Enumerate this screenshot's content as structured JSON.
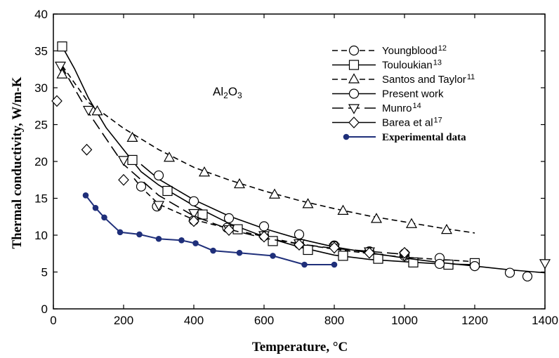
{
  "chart_data": {
    "type": "line",
    "title": "",
    "xlabel": "Temperature, °C",
    "ylabel": "Thermal conductivity, W/m-K",
    "xlim": [
      0,
      1400
    ],
    "ylim": [
      0,
      40
    ],
    "xticks": [
      "0",
      "200",
      "400",
      "600",
      "800",
      "1000",
      "1200",
      "1400"
    ],
    "yticks": [
      "0",
      "5",
      "10",
      "15",
      "20",
      "25",
      "30",
      "35",
      "40"
    ],
    "annotation": {
      "main": "Al",
      "sub": "2",
      "tail": "O",
      "sub2": "3"
    },
    "legend_position": "top-right",
    "series": [
      {
        "name": "Youngblood",
        "ref": "12",
        "marker": "circle",
        "line": "dashed",
        "color": "#000000",
        "curve": [
          [
            230,
            17.7
          ],
          [
            250,
            16.5
          ],
          [
            300,
            14.2
          ],
          [
            400,
            12.1
          ],
          [
            500,
            10.9
          ],
          [
            600,
            9.8
          ],
          [
            700,
            8.8
          ],
          [
            800,
            8.1
          ],
          [
            900,
            7.5
          ],
          [
            1000,
            7.0
          ],
          [
            1100,
            6.7
          ],
          [
            1200,
            6.4
          ]
        ],
        "points": [
          [
            250,
            16.6
          ],
          [
            295,
            13.9
          ],
          [
            400,
            12.0
          ],
          [
            495,
            11.0
          ],
          [
            600,
            9.9
          ],
          [
            700,
            8.8
          ],
          [
            800,
            8.6
          ],
          [
            1000,
            7.2
          ],
          [
            1100,
            6.9
          ]
        ]
      },
      {
        "name": "Touloukian",
        "ref": "13",
        "marker": "square",
        "line": "solid",
        "color": "#000000",
        "curve": [
          [
            25,
            35.6
          ],
          [
            60,
            32.6
          ],
          [
            100,
            28.6
          ],
          [
            150,
            24.6
          ],
          [
            200,
            21.6
          ],
          [
            250,
            18.6
          ],
          [
            300,
            16.8
          ],
          [
            350,
            15.4
          ],
          [
            400,
            14.0
          ],
          [
            500,
            11.6
          ],
          [
            600,
            9.8
          ],
          [
            700,
            8.4
          ],
          [
            800,
            7.3
          ],
          [
            900,
            6.7
          ],
          [
            1000,
            6.4
          ],
          [
            1100,
            6.1
          ],
          [
            1200,
            6.0
          ]
        ],
        "points": [
          [
            25,
            35.6
          ],
          [
            225,
            20.2
          ],
          [
            325,
            16.0
          ],
          [
            425,
            12.8
          ],
          [
            525,
            10.8
          ],
          [
            625,
            9.2
          ],
          [
            725,
            8.0
          ],
          [
            825,
            7.2
          ],
          [
            925,
            6.8
          ],
          [
            1025,
            6.3
          ],
          [
            1125,
            6.0
          ],
          [
            1200,
            6.2
          ]
        ]
      },
      {
        "name": "Santos and Taylor",
        "ref": "11",
        "marker": "triangle-up",
        "line": "dashed",
        "color": "#000000",
        "curve": [
          [
            25,
            33.0
          ],
          [
            100,
            28.0
          ],
          [
            200,
            24.5
          ],
          [
            300,
            21.6
          ],
          [
            400,
            19.2
          ],
          [
            500,
            17.5
          ],
          [
            600,
            16.0
          ],
          [
            700,
            14.7
          ],
          [
            800,
            13.6
          ],
          [
            900,
            12.6
          ],
          [
            1000,
            11.8
          ],
          [
            1100,
            11.0
          ],
          [
            1200,
            10.3
          ]
        ],
        "points": [
          [
            25,
            31.8
          ],
          [
            125,
            26.8
          ],
          [
            225,
            23.2
          ],
          [
            330,
            20.5
          ],
          [
            430,
            18.5
          ],
          [
            530,
            16.9
          ],
          [
            630,
            15.5
          ],
          [
            725,
            14.2
          ],
          [
            825,
            13.3
          ],
          [
            920,
            12.2
          ],
          [
            1020,
            11.5
          ],
          [
            1120,
            10.7
          ]
        ]
      },
      {
        "name": "Present work",
        "ref": "",
        "marker": "circle",
        "line": "solid",
        "color": "#000000",
        "curve": [
          [
            250,
            19.6
          ],
          [
            300,
            17.6
          ],
          [
            400,
            14.8
          ],
          [
            500,
            12.6
          ],
          [
            600,
            10.9
          ],
          [
            700,
            9.5
          ],
          [
            800,
            8.4
          ],
          [
            900,
            7.6
          ],
          [
            1000,
            6.9
          ],
          [
            1100,
            6.3
          ],
          [
            1200,
            5.8
          ],
          [
            1300,
            5.3
          ],
          [
            1400,
            4.9
          ]
        ],
        "points": [
          [
            300,
            18.1
          ],
          [
            400,
            14.6
          ],
          [
            500,
            12.3
          ],
          [
            600,
            11.2
          ],
          [
            700,
            10.1
          ],
          [
            800,
            8.5
          ],
          [
            900,
            7.8
          ],
          [
            1000,
            7.5
          ],
          [
            1100,
            6.1
          ],
          [
            1200,
            5.8
          ],
          [
            1300,
            4.9
          ],
          [
            1350,
            4.4
          ]
        ]
      },
      {
        "name": "Munro",
        "ref": "14",
        "marker": "triangle-down",
        "line": "long-dashed",
        "color": "#000000",
        "curve": [
          [
            20,
            33.2
          ],
          [
            100,
            26.6
          ],
          [
            200,
            19.6
          ],
          [
            300,
            15.4
          ],
          [
            400,
            12.6
          ],
          [
            500,
            10.8
          ],
          [
            600,
            9.6
          ],
          [
            700,
            8.8
          ],
          [
            800,
            8.2
          ],
          [
            900,
            7.8
          ],
          [
            1000,
            7.4
          ]
        ],
        "points": [
          [
            20,
            33.0
          ],
          [
            100,
            27.0
          ],
          [
            200,
            20.2
          ],
          [
            300,
            14.1
          ],
          [
            400,
            13.0
          ],
          [
            500,
            10.8
          ],
          [
            600,
            10.0
          ],
          [
            700,
            8.9
          ],
          [
            800,
            8.3
          ],
          [
            900,
            7.8
          ],
          [
            1000,
            7.2
          ],
          [
            1400,
            6.2
          ]
        ]
      },
      {
        "name": "Barea et al",
        "ref": "17",
        "marker": "diamond",
        "line": "none",
        "color": "#000000",
        "curve": [],
        "points": [
          [
            10,
            28.2
          ],
          [
            95,
            21.6
          ],
          [
            200,
            17.5
          ],
          [
            400,
            11.9
          ],
          [
            500,
            10.7
          ],
          [
            600,
            9.8
          ],
          [
            700,
            8.7
          ],
          [
            800,
            8.3
          ],
          [
            900,
            7.6
          ],
          [
            1000,
            7.6
          ]
        ]
      },
      {
        "name": "Experimental data",
        "ref": "",
        "marker": "dot",
        "line": "solid",
        "color": "#1f2f7a",
        "curve": [],
        "points": [
          [
            92,
            15.4
          ],
          [
            120,
            13.7
          ],
          [
            145,
            12.4
          ],
          [
            190,
            10.4
          ],
          [
            245,
            10.1
          ],
          [
            300,
            9.5
          ],
          [
            365,
            9.3
          ],
          [
            405,
            8.9
          ],
          [
            455,
            7.9
          ],
          [
            530,
            7.6
          ],
          [
            625,
            7.2
          ],
          [
            715,
            6.0
          ],
          [
            800,
            6.0
          ]
        ]
      }
    ]
  }
}
